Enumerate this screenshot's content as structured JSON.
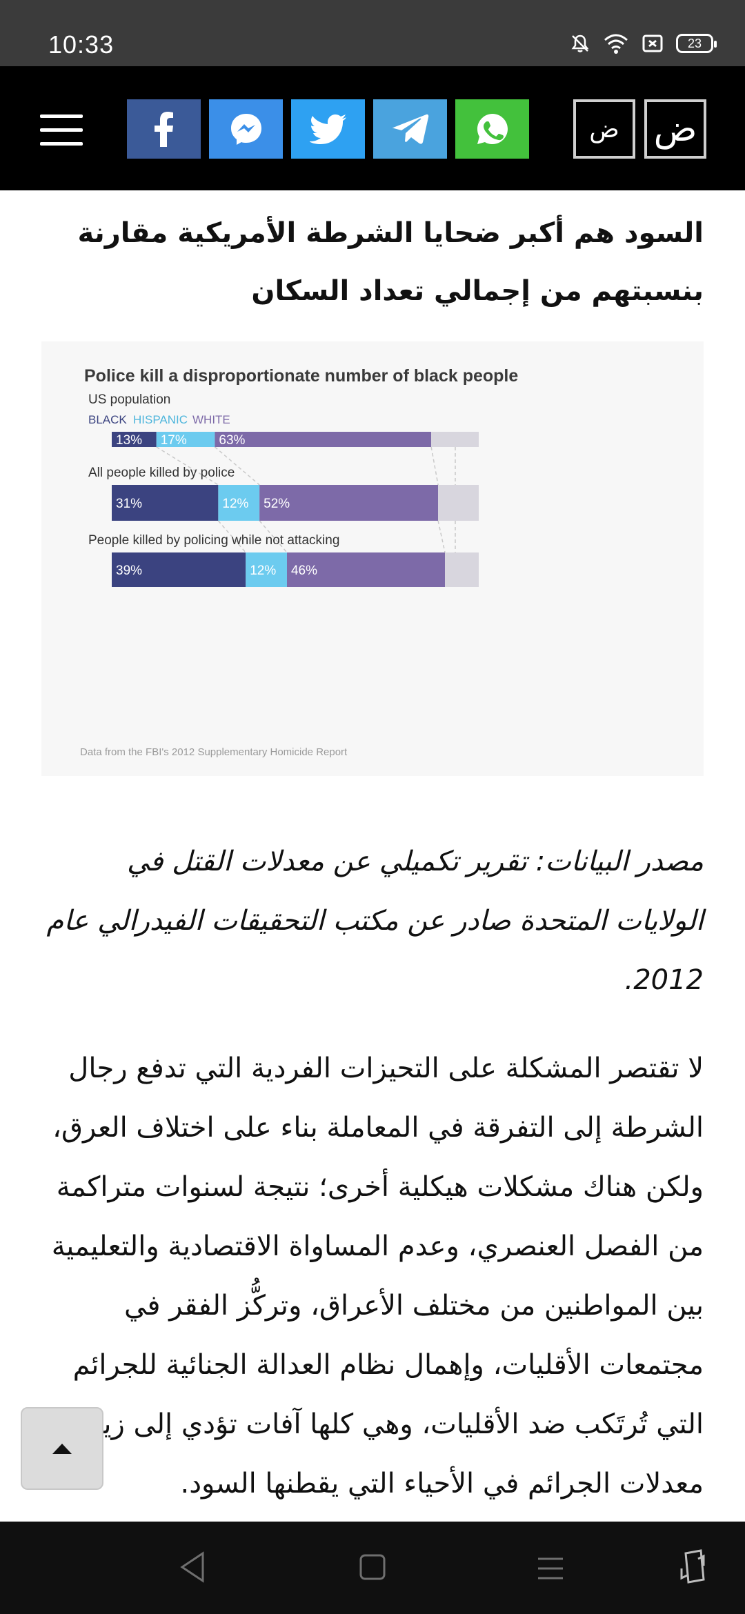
{
  "status_bar": {
    "time": "10:33",
    "battery": "23"
  },
  "toolbar": {
    "font_small": "ض",
    "font_large": "ض"
  },
  "article": {
    "headline": "السود هم أكبر ضحايا الشرطة الأمريكية مقارنة بنسبتهم من إجمالي تعداد السكان",
    "caption": "مصدر البيانات: تقرير تكميلي عن معدلات القتل في الولايات المتحدة صادر عن مكتب التحقيقات الفيدرالي عام 2012.",
    "body": "لا تقتصر المشكلة على التحيزات الفردية التي تدفع رجال الشرطة إلى التفرقة في المعاملة بناء على اختلاف العرق، ولكن هناك مشكلات هيكلية أخرى؛ نتيجة لسنوات متراكمة من الفصل العنصري، وعدم المساواة الاقتصادية والتعليمية بين المواطنين من مختلف الأعراق، وتركُّز الفقر في مجتمعات الأقليات، وإهمال نظام العدالة الجنائية للجرائم التي تُرتَكب ضد الأقليات، وهي كلها آفات تؤدي إلى زيادة معدلات الجرائم في الأحياء التي يقطنها السود."
  },
  "chart_data": {
    "type": "bar",
    "title": "Police kill a disproportionate number of black people",
    "source": "Data from the FBI's 2012 Supplementary Homicide Report",
    "legend": [
      "BLACK",
      "HISPANIC",
      "WHITE"
    ],
    "groups": [
      {
        "label": "US population",
        "values": [
          13,
          17,
          63
        ],
        "labels": [
          "13%",
          "17%",
          "63%"
        ]
      },
      {
        "label": "All people killed by police",
        "values": [
          31,
          12,
          52
        ],
        "labels": [
          "31%",
          "12%",
          "52%"
        ]
      },
      {
        "label": "People killed by policing while not attacking",
        "values": [
          39,
          12,
          46
        ],
        "labels": [
          "39%",
          "12%",
          "46%"
        ]
      }
    ],
    "colors": {
      "black": "#3b4380",
      "hispanic": "#6ccbef",
      "white": "#7d6aa8",
      "other": "#d8d6de"
    }
  },
  "colors": {
    "toolbar_bg": "#000000",
    "status_bg": "#3b3b3b",
    "nav_bg": "#101010"
  }
}
